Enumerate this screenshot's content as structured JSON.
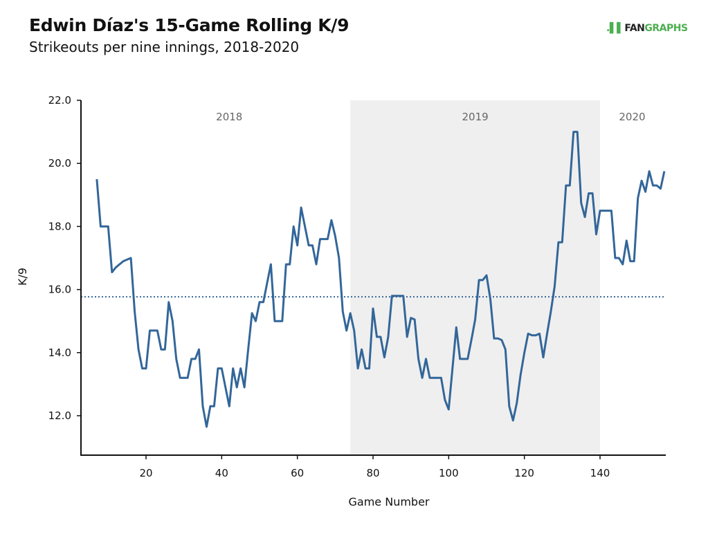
{
  "header": {
    "title": "Edwin Díaz's 15-Game Rolling K/9",
    "subtitle": "Strikeouts per nine innings, 2018-2020",
    "logo_fan": "FAN",
    "logo_graphs": "GRAPHS"
  },
  "colors": {
    "line": "#336699",
    "mean_line": "#336699",
    "shade": "#efefef",
    "axis": "#111111",
    "logo_green": "#4caf50"
  },
  "chart_data": {
    "type": "line",
    "title": "Edwin Díaz's 15-Game Rolling K/9",
    "subtitle": "Strikeouts per nine innings, 2018-2020",
    "xlabel": "Game Number",
    "ylabel": "K/9",
    "xlim": [
      2,
      157
    ],
    "ylim": [
      10.8,
      22.0
    ],
    "xticks": [
      20,
      40,
      60,
      80,
      100,
      120,
      140
    ],
    "xtick_labels": [
      "20",
      "40",
      "60",
      "80",
      "100",
      "120",
      "140"
    ],
    "yticks": [
      12,
      14,
      16,
      18,
      20,
      22
    ],
    "ytick_labels": [
      "12.0",
      "14.0",
      "16.0",
      "18.0",
      "20.0",
      "22.0"
    ],
    "grid": false,
    "mean_line": 15.77,
    "shaded_regions": [
      {
        "label": "2019",
        "x_start": 74,
        "x_end": 140
      }
    ],
    "era_labels": [
      {
        "label": "2018",
        "x": 42
      },
      {
        "label": "2019",
        "x": 107
      },
      {
        "label": "2020",
        "x": 148.5
      }
    ],
    "series": [
      {
        "name": "15-Game Rolling K/9",
        "x_start": 7,
        "values": [
          19.5,
          18.0,
          18.0,
          18.0,
          16.55,
          16.7,
          16.8,
          16.9,
          16.95,
          17.0,
          15.3,
          14.1,
          13.5,
          13.5,
          14.7,
          14.7,
          14.7,
          14.1,
          14.1,
          15.6,
          15.0,
          13.8,
          13.2,
          13.2,
          13.2,
          13.8,
          13.8,
          14.1,
          12.3,
          11.65,
          12.3,
          12.3,
          13.5,
          13.5,
          12.9,
          12.3,
          13.5,
          12.9,
          13.5,
          12.9,
          14.1,
          15.25,
          15.0,
          15.6,
          15.6,
          16.2,
          16.8,
          15.0,
          15.0,
          15.0,
          16.8,
          16.8,
          18.0,
          17.4,
          18.6,
          18.0,
          17.4,
          17.4,
          16.8,
          17.6,
          17.6,
          17.6,
          18.2,
          17.7,
          17.0,
          15.3,
          14.7,
          15.25,
          14.7,
          13.5,
          14.1,
          13.5,
          13.5,
          15.4,
          14.5,
          14.5,
          13.85,
          14.5,
          15.8,
          15.8,
          15.8,
          15.8,
          14.5,
          15.1,
          15.05,
          13.8,
          13.2,
          13.8,
          13.2,
          13.2,
          13.2,
          13.2,
          12.5,
          12.2,
          13.5,
          14.8,
          13.8,
          13.8,
          13.8,
          14.4,
          15.05,
          16.3,
          16.3,
          16.45,
          15.7,
          14.45,
          14.45,
          14.4,
          14.1,
          12.3,
          11.85,
          12.4,
          13.3,
          14.0,
          14.6,
          14.55,
          14.55,
          14.6,
          13.85,
          14.6,
          15.3,
          16.1,
          17.5,
          17.5,
          19.3,
          19.3,
          21.0,
          21.0,
          18.75,
          18.3,
          19.05,
          19.05,
          17.75,
          18.5,
          18.5,
          18.5,
          18.5,
          17.0,
          17.0,
          16.8,
          17.55,
          16.9,
          16.9,
          18.9,
          19.45,
          19.1,
          19.75,
          19.3,
          19.3,
          19.2,
          19.75
        ]
      }
    ]
  }
}
